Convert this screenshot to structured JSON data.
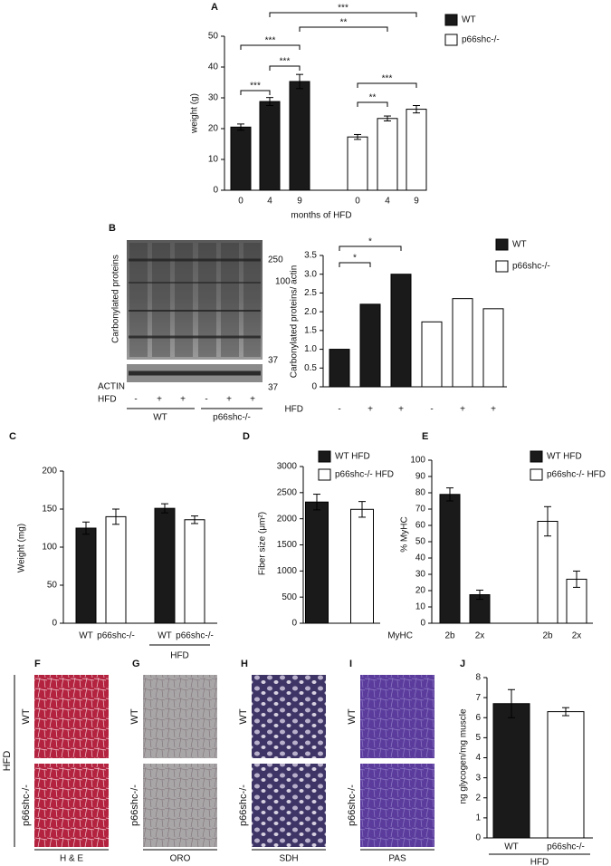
{
  "chart_data": [
    {
      "type": "bar",
      "panel": "A",
      "ylabel": "weight (g)",
      "xlabel": "months of HFD",
      "categories": [
        "0",
        "4",
        "9",
        "0",
        "4",
        "9"
      ],
      "series": [
        {
          "name": "WT",
          "color": "#1a1a1a",
          "values": [
            20.5,
            28.8,
            35.3,
            null,
            null,
            null
          ],
          "errors": [
            1,
            1.3,
            2.3,
            null,
            null,
            null
          ]
        },
        {
          "name": "p66shc-/-",
          "color": "#ffffff",
          "values": [
            null,
            null,
            null,
            17.3,
            23.3,
            26.3
          ],
          "errors": [
            null,
            null,
            null,
            0.8,
            0.8,
            1.2
          ]
        }
      ],
      "ylim": [
        0,
        50
      ],
      "yticks": [
        0,
        10,
        20,
        30,
        40,
        50
      ],
      "annotations": [
        "***",
        "**",
        "***",
        "***",
        "***",
        "***",
        "**"
      ]
    },
    {
      "type": "bar",
      "ylabel": "Carbonylated proteins/ actin",
      "row_label": "HFD",
      "categories": [
        "-",
        "+",
        "+",
        "-",
        "+",
        "+"
      ],
      "series": [
        {
          "name": "WT",
          "color": "#1a1a1a",
          "values": [
            1.0,
            2.2,
            3.0,
            null,
            null,
            null
          ]
        },
        {
          "name": "p66shc-/-",
          "color": "#ffffff",
          "values": [
            null,
            null,
            null,
            1.73,
            2.35,
            2.08
          ]
        }
      ],
      "ylim": [
        0,
        3.5
      ],
      "yticks": [
        0,
        0.5,
        {
          "value": 1,
          "label": "1.0"
        },
        1.5,
        {
          "value": 2,
          "label": "2.0"
        },
        2.5,
        {
          "value": 3,
          "label": "3.0"
        },
        3.5
      ],
      "annotations": [
        "*",
        "*"
      ]
    },
    {
      "type": "bar",
      "panel": "C",
      "ylabel": "Weight (mg)",
      "categories": [
        "WT",
        "p66shc-/-",
        "WT",
        "p66shc-/-"
      ],
      "group_label": "HFD",
      "series": [
        {
          "color": "#1a1a1a",
          "values": [
            125,
            null,
            151,
            null
          ],
          "errors": [
            8,
            null,
            6,
            null
          ]
        },
        {
          "color": "#ffffff",
          "values": [
            null,
            140,
            null,
            136
          ],
          "errors": [
            null,
            10,
            null,
            5
          ]
        }
      ],
      "ylim": [
        0,
        200
      ],
      "yticks": [
        0,
        50,
        100,
        150,
        200
      ]
    },
    {
      "type": "bar",
      "panel": "D",
      "ylabel": "Fiber size (μm²)",
      "series": [
        {
          "name": "WT HFD",
          "color": "#1a1a1a",
          "values": [
            2320,
            null
          ],
          "errors": [
            150,
            null
          ]
        },
        {
          "name": "p66shc-/- HFD",
          "color": "#ffffff",
          "values": [
            null,
            2180
          ],
          "errors": [
            null,
            150
          ]
        }
      ],
      "ylim": [
        0,
        3000
      ],
      "yticks": [
        0,
        500,
        1000,
        1500,
        2000,
        2500,
        3000
      ]
    },
    {
      "type": "bar",
      "panel": "E",
      "ylabel": "% MyHC",
      "row_label": "MyHC",
      "categories": [
        "2b",
        "2x",
        "2b",
        "2x"
      ],
      "series": [
        {
          "name": "WT HFD",
          "color": "#1a1a1a",
          "values": [
            79,
            17.5,
            null,
            null
          ],
          "errors": [
            4,
            2.8,
            null,
            null
          ]
        },
        {
          "name": "p66shc-/- HFD",
          "color": "#ffffff",
          "values": [
            null,
            null,
            62.5,
            27
          ],
          "errors": [
            null,
            null,
            9,
            5
          ]
        }
      ],
      "ylim": [
        0,
        100
      ],
      "yticks": [
        0,
        10,
        20,
        30,
        40,
        50,
        60,
        70,
        80,
        90,
        100
      ]
    },
    {
      "type": "bar",
      "panel": "J",
      "ylabel": "ng glycogen/mg muscle",
      "categories": [
        "WT",
        "p66shc-/-"
      ],
      "group_label": "HFD",
      "series": [
        {
          "color": "#1a1a1a",
          "values": [
            6.7,
            null
          ],
          "errors": [
            0.7,
            null
          ]
        },
        {
          "color": "#ffffff",
          "values": [
            null,
            6.3
          ],
          "errors": [
            null,
            0.2
          ]
        }
      ],
      "ylim": [
        0,
        8
      ],
      "yticks": [
        0,
        1,
        2,
        3,
        4,
        5,
        6,
        7,
        8
      ]
    }
  ],
  "blot": {
    "panel": "B",
    "ylabel": "Carbonylated proteins",
    "actin_label": "ACTIN",
    "markers": [
      "250",
      "100",
      "37",
      "37"
    ],
    "hfd_label": "HFD",
    "hfd_row": [
      "-",
      "+",
      "+",
      "-",
      "+",
      "+"
    ],
    "groups": [
      "WT",
      "p66shc-/-"
    ]
  },
  "histology": {
    "panels": [
      "F",
      "G",
      "H",
      "I"
    ],
    "side_label": "HFD",
    "row_labels": [
      "WT",
      "p66shc-/-"
    ],
    "stains": [
      "H & E",
      "ORO",
      "SDH",
      "PAS"
    ]
  }
}
